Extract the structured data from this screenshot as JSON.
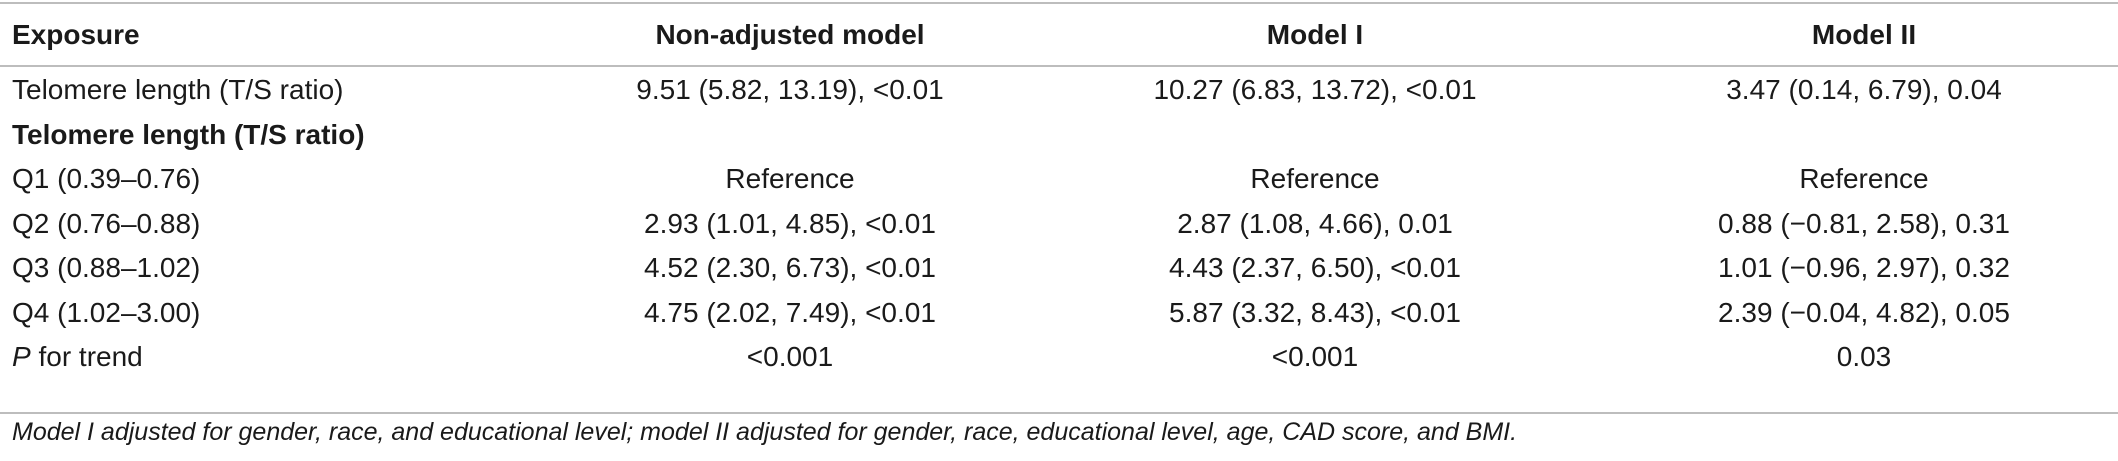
{
  "table": {
    "headers": [
      "Exposure",
      "Non-adjusted model",
      "Model I",
      "Model II"
    ],
    "rows": [
      {
        "exposure": "Telomere length (T/S ratio)",
        "nonadjusted": "9.51 (5.82, 13.19), <0.01",
        "model1": "10.27 (6.83, 13.72), <0.01",
        "model2": "3.47 (0.14, 6.79), 0.04"
      },
      {
        "exposure": "Telomere length (T/S ratio)",
        "nonadjusted": "",
        "model1": "",
        "model2": ""
      },
      {
        "exposure": "Q1 (0.39–0.76)",
        "nonadjusted": "Reference",
        "model1": "Reference",
        "model2": "Reference"
      },
      {
        "exposure": "Q2 (0.76–0.88)",
        "nonadjusted": "2.93 (1.01, 4.85), <0.01",
        "model1": "2.87 (1.08, 4.66), 0.01",
        "model2": "0.88 (−0.81, 2.58), 0.31"
      },
      {
        "exposure": "Q3 (0.88–1.02)",
        "nonadjusted": "4.52 (2.30, 6.73), <0.01",
        "model1": "4.43 (2.37, 6.50), <0.01",
        "model2": "1.01 (−0.96, 2.97), 0.32"
      },
      {
        "exposure": "Q4 (1.02–3.00)",
        "nonadjusted": "4.75 (2.02, 7.49), <0.01",
        "model1": "5.87 (3.32, 8.43), <0.01",
        "model2": "2.39 (−0.04, 4.82), 0.05"
      },
      {
        "exposure_italic": "P",
        "exposure": " for trend",
        "nonadjusted": "<0.001",
        "model1": "<0.001",
        "model2": "0.03"
      }
    ]
  },
  "footnote": "Model I adjusted for gender, race, and educational level; model II adjusted for gender, race, educational level, age, CAD score, and BMI."
}
